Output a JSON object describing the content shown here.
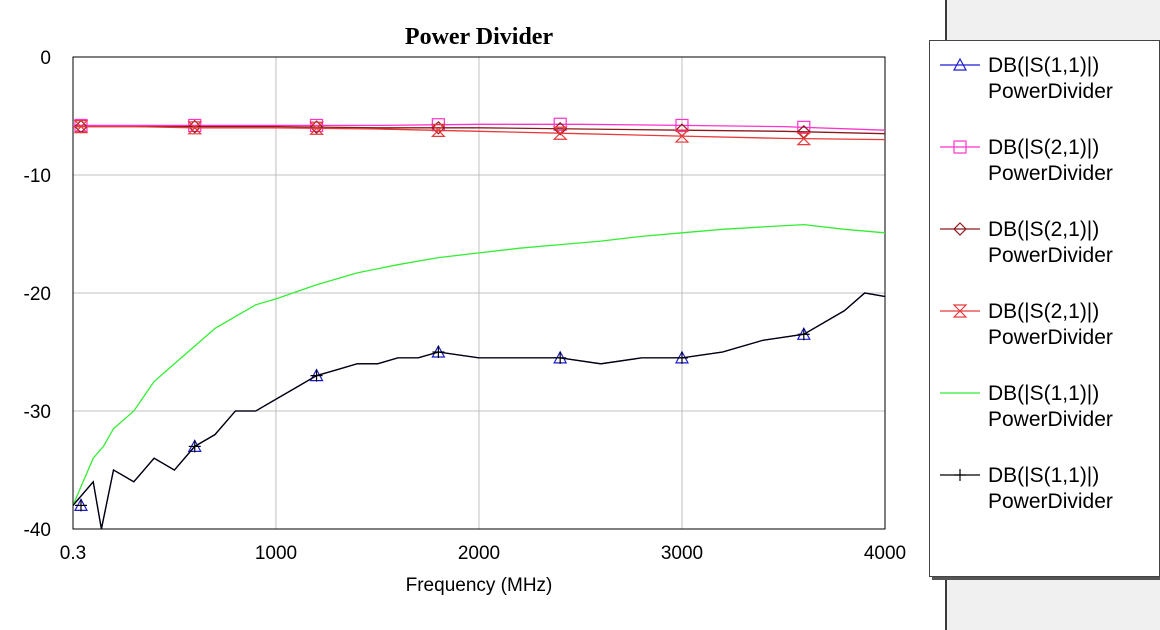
{
  "chart_data": {
    "type": "line",
    "title": "Power Divider",
    "xlabel": "Frequency (MHz)",
    "ylabel": "",
    "xlim": [
      0.3,
      4000
    ],
    "ylim": [
      -40,
      0
    ],
    "x_ticks": [
      0.3,
      1000,
      2000,
      3000,
      4000
    ],
    "x_tick_labels": [
      "0.3",
      "1000",
      "2000",
      "3000",
      "4000"
    ],
    "y_ticks": [
      0,
      -10,
      -20,
      -30,
      -40
    ],
    "y_tick_labels": [
      "0",
      "-10",
      "-20",
      "-30",
      "-40"
    ],
    "grid": true,
    "legend_position": "right",
    "series": [
      {
        "name": "DB(|S(1,1)|)",
        "document": "PowerDivider",
        "color": "#1c1ccf",
        "marker": "triangle",
        "points": [
          [
            0.3,
            -38
          ],
          [
            100,
            -36
          ],
          [
            140,
            -40
          ],
          [
            200,
            -35
          ],
          [
            300,
            -36
          ],
          [
            400,
            -34
          ],
          [
            500,
            -35
          ],
          [
            600,
            -33
          ],
          [
            700,
            -32
          ],
          [
            800,
            -30
          ],
          [
            900,
            -30
          ],
          [
            1000,
            -29
          ],
          [
            1100,
            -28
          ],
          [
            1200,
            -27
          ],
          [
            1300,
            -26.5
          ],
          [
            1400,
            -26
          ],
          [
            1500,
            -26
          ],
          [
            1600,
            -25.5
          ],
          [
            1700,
            -25.5
          ],
          [
            1800,
            -25
          ],
          [
            2000,
            -25.5
          ],
          [
            2200,
            -25.5
          ],
          [
            2400,
            -25.5
          ],
          [
            2600,
            -26
          ],
          [
            2800,
            -25.5
          ],
          [
            3000,
            -25.5
          ],
          [
            3200,
            -25
          ],
          [
            3400,
            -24
          ],
          [
            3600,
            -23.5
          ],
          [
            3800,
            -21.5
          ],
          [
            3900,
            -20
          ],
          [
            4000,
            -20.3
          ]
        ]
      },
      {
        "name": "DB(|S(2,1)|)",
        "document": "PowerDivider",
        "color": "#ff33cc",
        "marker": "square",
        "points": [
          [
            0.3,
            -5.8
          ],
          [
            300,
            -5.8
          ],
          [
            600,
            -5.8
          ],
          [
            1000,
            -5.8
          ],
          [
            1500,
            -5.8
          ],
          [
            2000,
            -5.7
          ],
          [
            2500,
            -5.7
          ],
          [
            3000,
            -5.8
          ],
          [
            3500,
            -5.9
          ],
          [
            4000,
            -6.2
          ]
        ]
      },
      {
        "name": "DB(|S(2,1)|)",
        "document": "PowerDivider",
        "color": "#8b1a1a",
        "marker": "diamond",
        "points": [
          [
            0.3,
            -5.9
          ],
          [
            300,
            -5.9
          ],
          [
            600,
            -5.9
          ],
          [
            1000,
            -5.9
          ],
          [
            1500,
            -6.0
          ],
          [
            2000,
            -6.0
          ],
          [
            2500,
            -6.1
          ],
          [
            3000,
            -6.2
          ],
          [
            3500,
            -6.3
          ],
          [
            4000,
            -6.5
          ]
        ]
      },
      {
        "name": "DB(|S(2,1)|)",
        "document": "PowerDivider",
        "color": "#e83a3a",
        "marker": "hourglass",
        "points": [
          [
            0.3,
            -5.9
          ],
          [
            300,
            -5.9
          ],
          [
            600,
            -6.0
          ],
          [
            1000,
            -6.0
          ],
          [
            1500,
            -6.1
          ],
          [
            2000,
            -6.3
          ],
          [
            2500,
            -6.5
          ],
          [
            3000,
            -6.7
          ],
          [
            3500,
            -6.9
          ],
          [
            4000,
            -7.0
          ]
        ]
      },
      {
        "name": "DB(|S(1,1)|)",
        "document": "PowerDivider",
        "color": "#33ee33",
        "marker": "none",
        "points": [
          [
            0.3,
            -38
          ],
          [
            100,
            -34
          ],
          [
            150,
            -33
          ],
          [
            200,
            -31.5
          ],
          [
            300,
            -30
          ],
          [
            400,
            -27.5
          ],
          [
            500,
            -26
          ],
          [
            600,
            -24.5
          ],
          [
            700,
            -23
          ],
          [
            800,
            -22
          ],
          [
            900,
            -21
          ],
          [
            1000,
            -20.5
          ],
          [
            1200,
            -19.3
          ],
          [
            1400,
            -18.3
          ],
          [
            1600,
            -17.6
          ],
          [
            1800,
            -17
          ],
          [
            2000,
            -16.6
          ],
          [
            2200,
            -16.2
          ],
          [
            2400,
            -15.9
          ],
          [
            2600,
            -15.6
          ],
          [
            2800,
            -15.2
          ],
          [
            3000,
            -14.9
          ],
          [
            3200,
            -14.6
          ],
          [
            3400,
            -14.4
          ],
          [
            3600,
            -14.2
          ],
          [
            3800,
            -14.6
          ],
          [
            4000,
            -14.9
          ]
        ]
      },
      {
        "name": "DB(|S(1,1)|)",
        "document": "PowerDivider",
        "color": "#000000",
        "marker": "plus",
        "points": [
          [
            0.3,
            -38
          ],
          [
            100,
            -36
          ],
          [
            140,
            -40
          ],
          [
            200,
            -35
          ],
          [
            300,
            -36
          ],
          [
            400,
            -34
          ],
          [
            500,
            -35
          ],
          [
            600,
            -33
          ],
          [
            700,
            -32
          ],
          [
            800,
            -30
          ],
          [
            900,
            -30
          ],
          [
            1000,
            -29
          ],
          [
            1100,
            -28
          ],
          [
            1200,
            -27
          ],
          [
            1300,
            -26.5
          ],
          [
            1400,
            -26
          ],
          [
            1500,
            -26
          ],
          [
            1600,
            -25.5
          ],
          [
            1700,
            -25.5
          ],
          [
            1800,
            -25
          ],
          [
            2000,
            -25.5
          ],
          [
            2200,
            -25.5
          ],
          [
            2400,
            -25.5
          ],
          [
            2600,
            -26
          ],
          [
            2800,
            -25.5
          ],
          [
            3000,
            -25.5
          ],
          [
            3200,
            -25
          ],
          [
            3400,
            -24
          ],
          [
            3600,
            -23.5
          ],
          [
            3800,
            -21.5
          ],
          [
            3900,
            -20
          ],
          [
            4000,
            -20.3
          ]
        ]
      }
    ]
  }
}
